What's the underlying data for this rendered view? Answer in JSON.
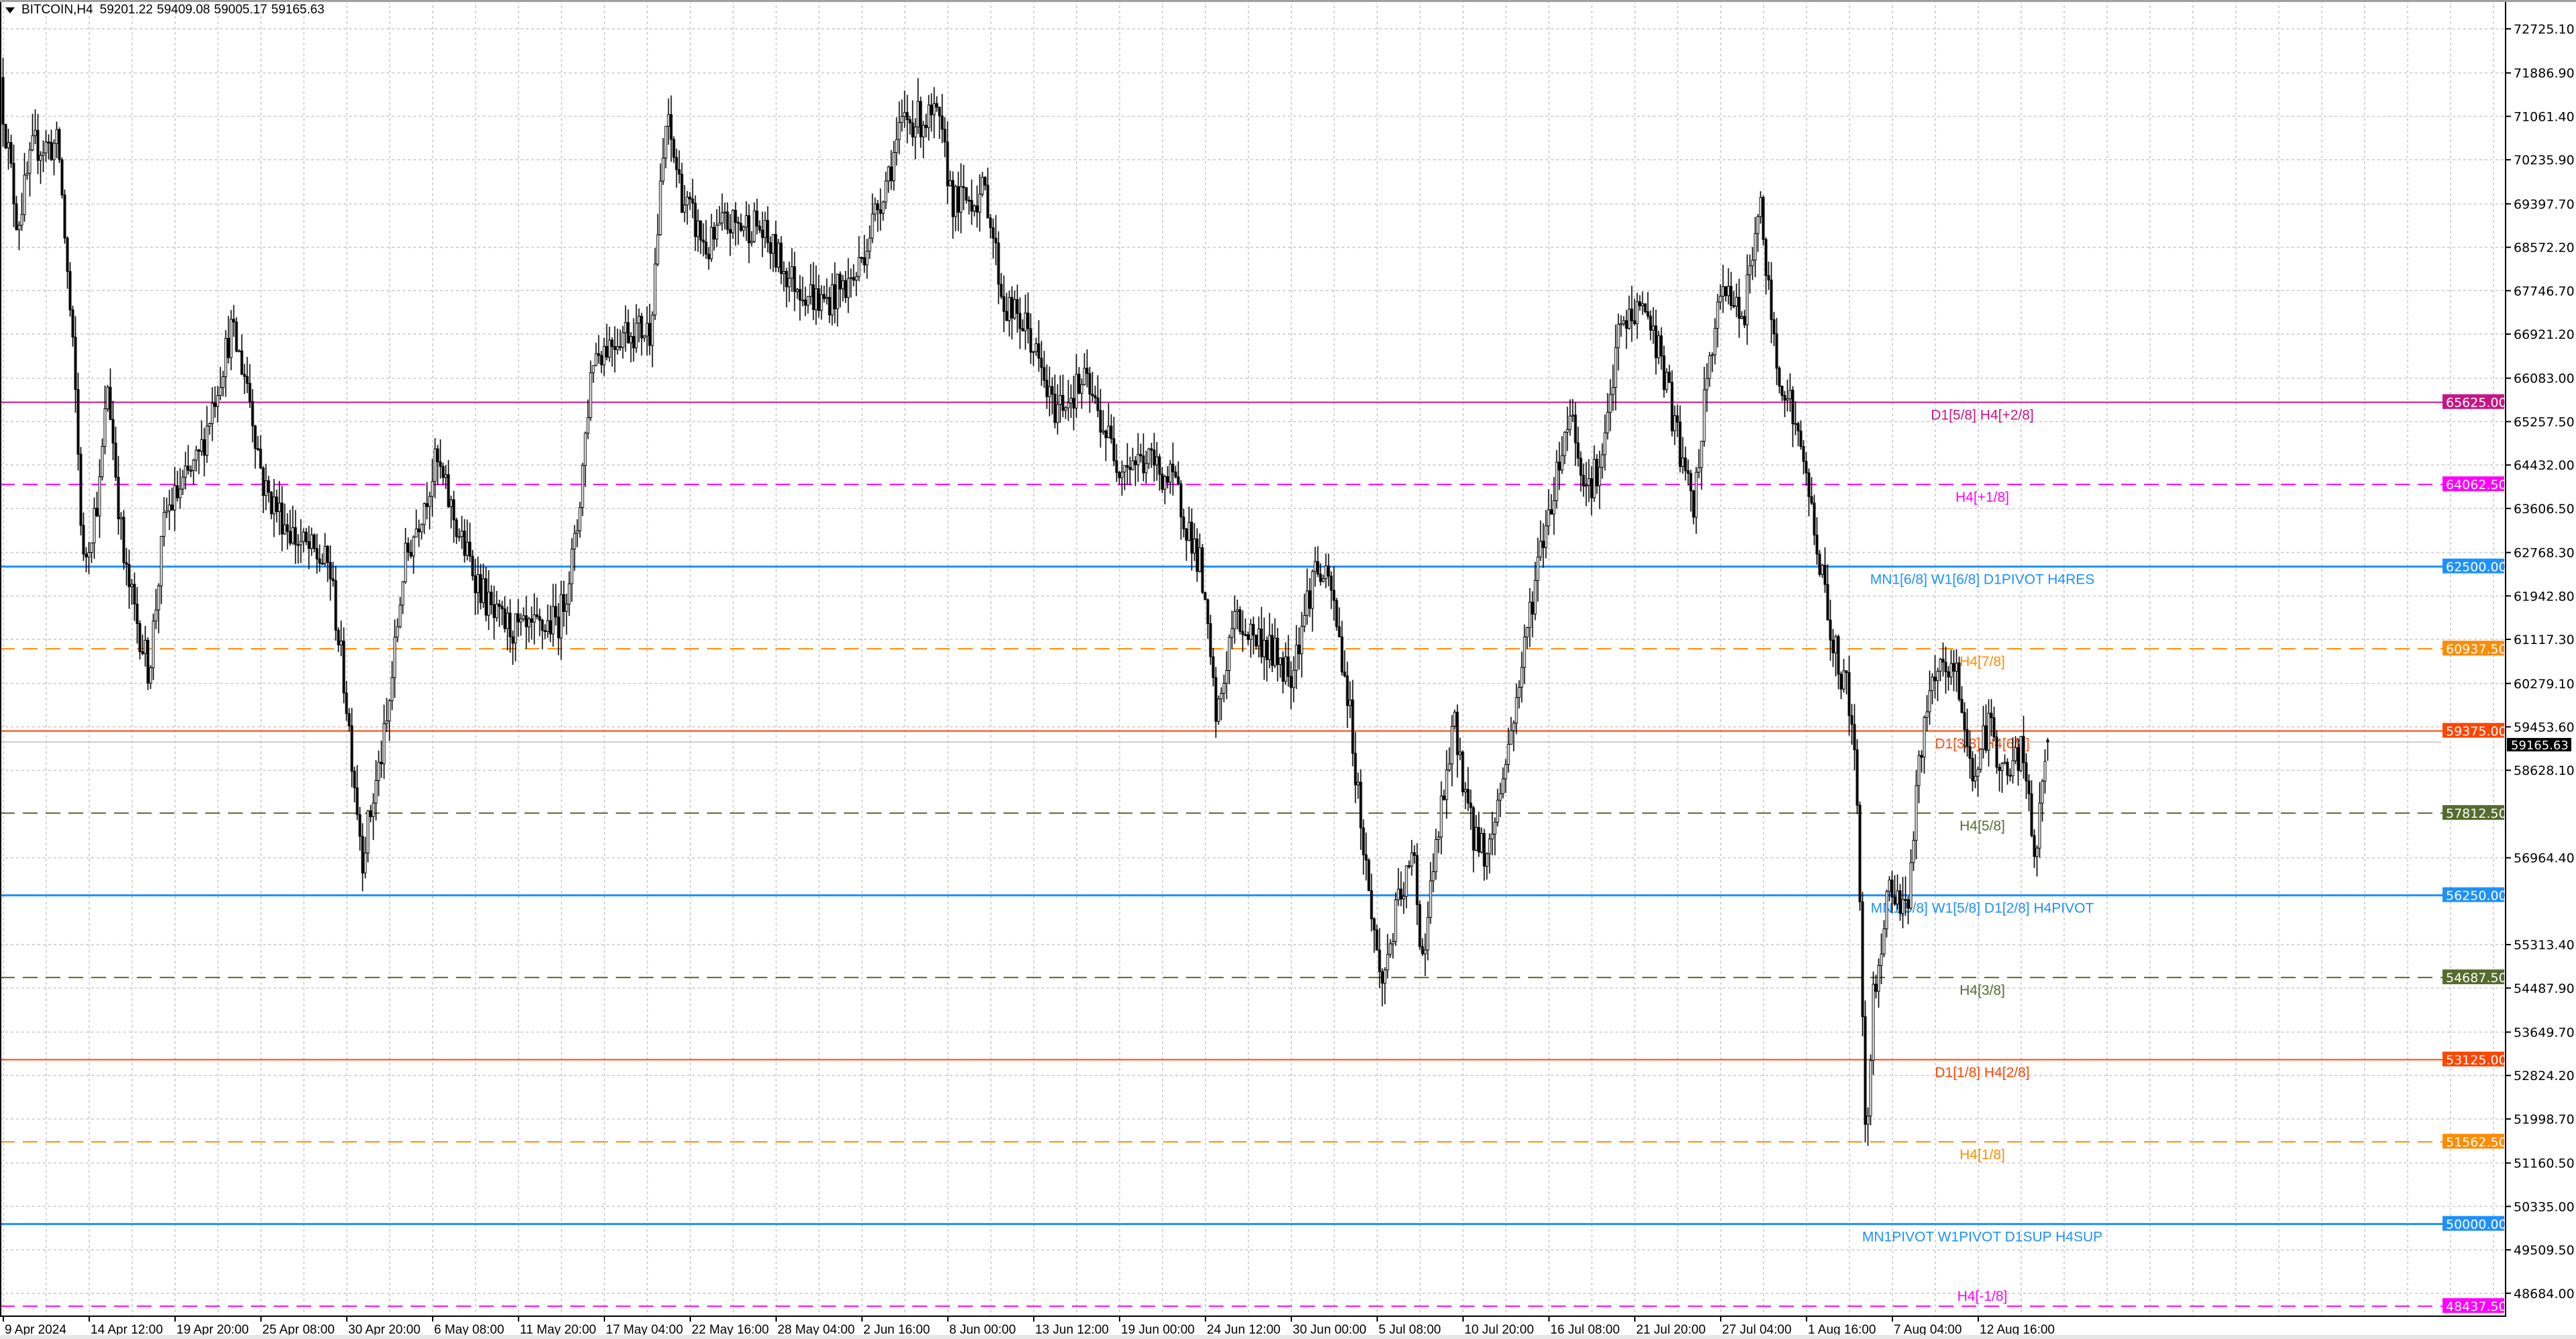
{
  "header": {
    "symbol_timeframe": "BITCOIN,H4",
    "open": "59201.22",
    "high": "59409.08",
    "low": "59005.17",
    "close": "59165.63",
    "menu_icon": "triangle-down-icon"
  },
  "price_axis": {
    "labels": [
      "72725.10",
      "71886.90",
      "71061.40",
      "70235.90",
      "69397.70",
      "68572.20",
      "67746.70",
      "66921.20",
      "66083.00",
      "65257.50",
      "64432.00",
      "63606.50",
      "62768.30",
      "61942.80",
      "61117.30",
      "60279.10",
      "59453.60",
      "58628.10",
      "56964.40",
      "55313.40",
      "54487.90",
      "53649.70",
      "52824.20",
      "51998.70",
      "51160.50",
      "50335.00",
      "49509.50",
      "48684.00"
    ],
    "current_price": "59165.63",
    "current_price_color": "#000000"
  },
  "time_axis": {
    "labels": [
      "9 Apr 2024",
      "14 Apr 12:00",
      "19 Apr 20:00",
      "25 Apr 08:00",
      "30 Apr 20:00",
      "6 May 08:00",
      "11 May 20:00",
      "17 May 04:00",
      "22 May 16:00",
      "28 May 04:00",
      "2 Jun 16:00",
      "8 Jun 00:00",
      "13 Jun 12:00",
      "19 Jun 00:00",
      "24 Jun 12:00",
      "30 Jun 00:00",
      "5 Jul 08:00",
      "10 Jul 20:00",
      "16 Jul 08:00",
      "21 Jul 20:00",
      "27 Jul 04:00",
      "1 Aug 16:00",
      "7 Aug 04:00",
      "12 Aug 16:00"
    ]
  },
  "levels": [
    {
      "price": "65625.00",
      "label": "D1[5/8] H4[+2/8]",
      "color": "#c71585",
      "style": "solid"
    },
    {
      "price": "64062.50",
      "label": "H4[+1/8]",
      "color": "#ff00ff",
      "style": "dashed"
    },
    {
      "price": "62500.00",
      "label": "MN1[6/8] W1[6/8] D1PIVOT H4RES",
      "color": "#1e90ff",
      "style": "solid"
    },
    {
      "price": "60937.50",
      "label": "H4[7/8]",
      "color": "#ff8c00",
      "style": "dashed"
    },
    {
      "price": "59375.00",
      "label": "D1[3/8] H4[6/8]",
      "color": "#ff4500",
      "style": "solid"
    },
    {
      "price": "57812.50",
      "label": "H4[5/8]",
      "color": "#556b2f",
      "style": "dashed"
    },
    {
      "price": "56250.00",
      "label": "MN1[5/8] W1[5/8] D1[2/8] H4PIVOT",
      "color": "#1e90ff",
      "style": "solid"
    },
    {
      "price": "54687.50",
      "label": "H4[3/8]",
      "color": "#556b2f",
      "style": "dashed"
    },
    {
      "price": "53125.00",
      "label": "D1[1/8] H4[2/8]",
      "color": "#ff4500",
      "style": "solid"
    },
    {
      "price": "51562.50",
      "label": "H4[1/8]",
      "color": "#ff8c00",
      "style": "dashed"
    },
    {
      "price": "50000.00",
      "label": "MN1PIVOT W1PIVOT D1SUP H4SUP",
      "color": "#1e90ff",
      "style": "solid"
    },
    {
      "price": "48437.50",
      "label": "H4[-1/8]",
      "color": "#ff00ff",
      "style": "dashed"
    }
  ]
}
